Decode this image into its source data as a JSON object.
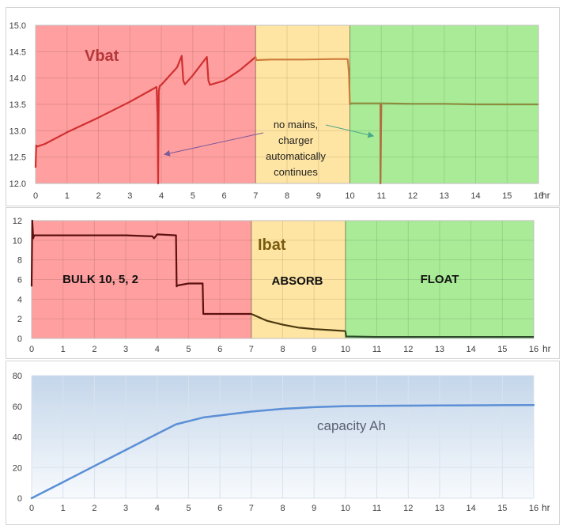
{
  "chart_data": [
    {
      "type": "line",
      "title": "Vbat",
      "x_unit": "hr",
      "xlim": [
        0,
        16
      ],
      "ylim": [
        12.0,
        15.0
      ],
      "x_ticks": [
        "0",
        "1",
        "2",
        "3",
        "4",
        "5",
        "6",
        "7",
        "8",
        "9",
        "10",
        "11",
        "12",
        "13",
        "14",
        "15",
        "16"
      ],
      "y_ticks": [
        "12.0",
        "12.5",
        "13.0",
        "13.5",
        "14.0",
        "14.5",
        "15.0"
      ],
      "phases": [
        {
          "from": 0,
          "to": 7,
          "color": "#ff9f9f"
        },
        {
          "from": 7,
          "to": 10,
          "color": "#ffe5a3"
        },
        {
          "from": 10,
          "to": 16,
          "color": "#a9eb97"
        }
      ],
      "series": [
        {
          "color": "#d03030",
          "x": [
            0,
            0.02,
            0.05,
            0.3,
            1,
            2,
            3,
            3.85,
            3.88,
            3.9,
            3.92,
            3.95,
            4.0,
            4.5,
            4.65,
            4.7,
            4.75,
            5.0,
            5.45,
            5.5,
            5.55,
            6.0,
            6.5,
            7.0
          ],
          "y": [
            12.3,
            12.72,
            12.7,
            12.75,
            12.97,
            13.25,
            13.55,
            13.83,
            13.3,
            12.0,
            13.75,
            13.85,
            13.87,
            14.2,
            14.42,
            13.95,
            13.88,
            14.05,
            14.4,
            13.95,
            13.87,
            13.95,
            14.15,
            14.4
          ]
        },
        {
          "color": "#cc7a3a",
          "x": [
            7.0,
            7.02,
            7.5,
            8.5,
            9.5,
            9.93,
            9.97,
            10.0
          ],
          "y": [
            14.4,
            14.34,
            14.35,
            14.35,
            14.36,
            14.36,
            14.1,
            13.5
          ]
        },
        {
          "color": "#8c8c3e",
          "x": [
            10.0,
            10.05,
            11,
            12,
            13,
            14,
            15,
            16
          ],
          "y": [
            13.5,
            13.52,
            13.52,
            13.51,
            13.51,
            13.5,
            13.5,
            13.5
          ]
        },
        {
          "color": "#b07040",
          "x": [
            10.95,
            10.97,
            10.97,
            11.0
          ],
          "y": [
            13.5,
            13.5,
            12.0,
            13.5
          ]
        }
      ],
      "annotations": {
        "text": [
          "no mains,",
          "charger",
          "automatically",
          "continues"
        ],
        "arrow_targets": [
          {
            "x": 4.1,
            "y": 12.55
          },
          {
            "x": 10.75,
            "y": 12.9
          }
        ]
      }
    },
    {
      "type": "line",
      "title": "Ibat",
      "x_unit": "hr",
      "xlim": [
        0,
        16
      ],
      "ylim": [
        0,
        12
      ],
      "x_ticks": [
        "0",
        "1",
        "2",
        "3",
        "4",
        "5",
        "6",
        "7",
        "8",
        "9",
        "10",
        "11",
        "12",
        "13",
        "14",
        "15",
        "16"
      ],
      "y_ticks": [
        "0",
        "2",
        "4",
        "6",
        "8",
        "10",
        "12"
      ],
      "phases": [
        {
          "from": 0,
          "to": 7,
          "color": "#ff9f9f",
          "label": "BULK 10, 5, 2"
        },
        {
          "from": 7,
          "to": 10,
          "color": "#ffe5a3",
          "label": "ABSORB"
        },
        {
          "from": 10,
          "to": 16,
          "color": "#a9eb97",
          "label": "FLOAT"
        }
      ],
      "series": [
        {
          "color": "#5c1010",
          "x": [
            0,
            0.02,
            0.05,
            0.08,
            1,
            2,
            3,
            3.85,
            3.9,
            4.0,
            4.6,
            4.62,
            4.65,
            5.0,
            5.45,
            5.47,
            5.5,
            6,
            6.95,
            7.0
          ],
          "y": [
            5.3,
            12.0,
            10.2,
            10.5,
            10.5,
            10.5,
            10.5,
            10.4,
            10.2,
            10.6,
            10.5,
            5.3,
            5.4,
            5.6,
            5.6,
            2.5,
            2.5,
            2.5,
            2.5,
            2.5
          ]
        },
        {
          "color": "#4a3a10",
          "x": [
            7.0,
            7.5,
            8,
            8.5,
            9,
            9.5,
            10.0
          ],
          "y": [
            2.5,
            1.8,
            1.4,
            1.1,
            0.95,
            0.85,
            0.75
          ]
        },
        {
          "color": "#2a4a2a",
          "x": [
            10.0,
            10.02,
            11,
            13,
            16
          ],
          "y": [
            0.75,
            0.2,
            0.15,
            0.15,
            0.15
          ]
        }
      ]
    },
    {
      "type": "area",
      "title": "capacity Ah",
      "x_unit": "hr",
      "xlim": [
        0,
        16
      ],
      "ylim": [
        0,
        80
      ],
      "x_ticks": [
        "0",
        "1",
        "2",
        "3",
        "4",
        "5",
        "6",
        "7",
        "8",
        "9",
        "10",
        "11",
        "12",
        "13",
        "14",
        "15",
        "16"
      ],
      "y_ticks": [
        "0",
        "20",
        "40",
        "60",
        "80"
      ],
      "series": [
        {
          "color": "#5b8fd6",
          "x": [
            0,
            1,
            2,
            3,
            4,
            4.6,
            5.5,
            6,
            7,
            8,
            9,
            10,
            11,
            12,
            13,
            14,
            15,
            16
          ],
          "y": [
            0,
            10.5,
            21,
            31.5,
            42,
            48.2,
            52.8,
            54,
            56.5,
            58.3,
            59.4,
            60.1,
            60.3,
            60.4,
            60.5,
            60.6,
            60.7,
            60.8
          ]
        }
      ]
    }
  ]
}
